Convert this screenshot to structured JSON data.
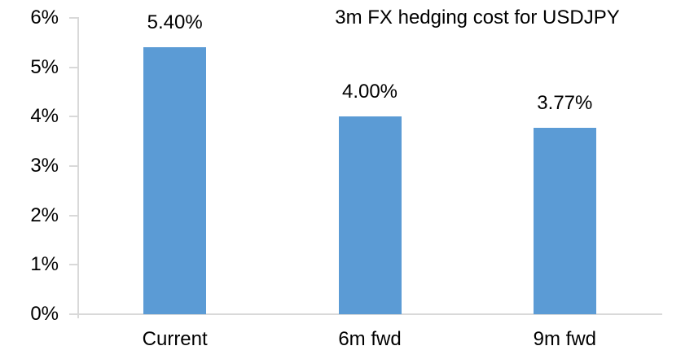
{
  "chart_data": {
    "type": "bar",
    "title": "3m FX hedging cost for USDJPY",
    "categories": [
      "Current",
      "6m fwd",
      "9m fwd"
    ],
    "values": [
      5.4,
      4.0,
      3.77
    ],
    "data_labels": [
      "5.40%",
      "4.00%",
      "3.77%"
    ],
    "xlabel": "",
    "ylabel": "",
    "ylim": [
      0,
      6
    ],
    "y_tick_labels": [
      "0%",
      "1%",
      "2%",
      "3%",
      "4%",
      "5%",
      "6%"
    ],
    "grid": false,
    "legend": false,
    "layout_hints": {
      "data_labels_position": "above bars",
      "tick_marks": "outside, left of y-axis"
    },
    "colors": {
      "bar_fill": "#5B9BD5",
      "axis_line": "#D9D9D9",
      "text": "#000000",
      "background": "#FFFFFF"
    }
  }
}
